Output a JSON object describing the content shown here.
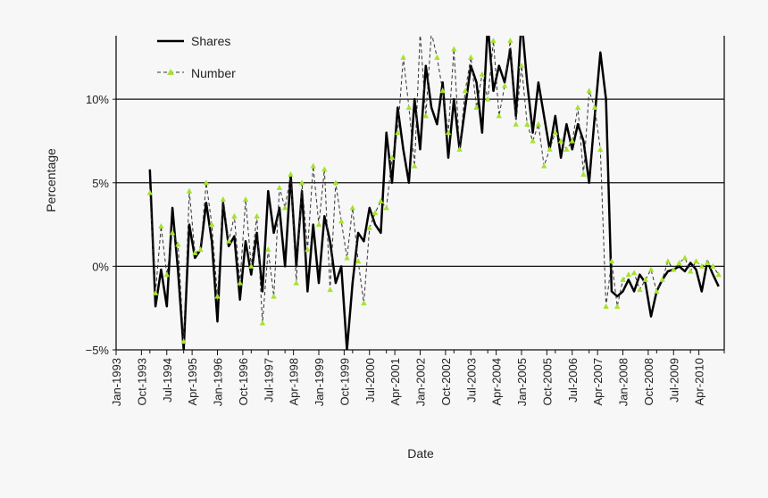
{
  "chart_data": {
    "type": "line",
    "title": "",
    "xlabel": "Date",
    "ylabel": "Percentage",
    "ylim": [
      -5,
      13.8
    ],
    "y_ticks": [
      {
        "value": -5,
        "label": "−5%"
      },
      {
        "value": 0,
        "label": "0%"
      },
      {
        "value": 5,
        "label": "5%"
      },
      {
        "value": 10,
        "label": "10%"
      }
    ],
    "x_range": [
      "1993-01",
      "2011-01"
    ],
    "x_ticks": [
      "Jan-1993",
      "Oct-1993",
      "Jul-1994",
      "Apr-1995",
      "Jan-1996",
      "Oct-1996",
      "Jul-1997",
      "Apr-1998",
      "Jan-1999",
      "Oct-1999",
      "Jul-2000",
      "Apr-2001",
      "Jan-2002",
      "Oct-2002",
      "Jul-2003",
      "Apr-2004",
      "Jan-2005",
      "Oct-2005",
      "Jul-2006",
      "Apr-2007",
      "Jan-2008",
      "Oct-2008",
      "Jul-2009",
      "Apr-2010"
    ],
    "x_tick_dates": [
      "1993-01",
      "1993-10",
      "1994-07",
      "1995-04",
      "1996-01",
      "1996-10",
      "1997-07",
      "1998-04",
      "1999-01",
      "1999-10",
      "2000-07",
      "2001-04",
      "2002-01",
      "2002-10",
      "2003-07",
      "2004-04",
      "2005-01",
      "2005-10",
      "2006-07",
      "2007-04",
      "2008-01",
      "2008-10",
      "2009-07",
      "2010-04"
    ],
    "gridlines_y": [
      10,
      5,
      0,
      -5
    ],
    "legend_placement": "top-left",
    "series": [
      {
        "name": "Shares",
        "color": "#000000",
        "style": "solid",
        "x": [
          "1994-01",
          "1994-03",
          "1994-05",
          "1994-07",
          "1994-09",
          "1994-11",
          "1995-01",
          "1995-03",
          "1995-05",
          "1995-07",
          "1995-09",
          "1995-11",
          "1996-01",
          "1996-03",
          "1996-05",
          "1996-07",
          "1996-09",
          "1996-11",
          "1997-01",
          "1997-03",
          "1997-05",
          "1997-07",
          "1997-09",
          "1997-11",
          "1998-01",
          "1998-03",
          "1998-05",
          "1998-07",
          "1998-09",
          "1998-11",
          "1999-01",
          "1999-03",
          "1999-05",
          "1999-07",
          "1999-09",
          "1999-11",
          "2000-01",
          "2000-03",
          "2000-05",
          "2000-07",
          "2000-09",
          "2000-11",
          "2001-01",
          "2001-03",
          "2001-05",
          "2001-07",
          "2001-09",
          "2001-11",
          "2002-01",
          "2002-03",
          "2002-05",
          "2002-07",
          "2002-09",
          "2002-11",
          "2003-01",
          "2003-03",
          "2003-05",
          "2003-07",
          "2003-09",
          "2003-11",
          "2004-01",
          "2004-03",
          "2004-05",
          "2004-07",
          "2004-09",
          "2004-11",
          "2005-01",
          "2005-03",
          "2005-05",
          "2005-07",
          "2005-09",
          "2005-11",
          "2006-01",
          "2006-03",
          "2006-05",
          "2006-07",
          "2006-09",
          "2006-11",
          "2007-01",
          "2007-03",
          "2007-05",
          "2007-07",
          "2007-09",
          "2007-11",
          "2008-01",
          "2008-03",
          "2008-05",
          "2008-07",
          "2008-09",
          "2008-11",
          "2009-01",
          "2009-03",
          "2009-05",
          "2009-07",
          "2009-09",
          "2009-11",
          "2010-01",
          "2010-03",
          "2010-05",
          "2010-07",
          "2010-09",
          "2010-11"
        ],
        "y": [
          5.8,
          -2.4,
          -0.2,
          -2.4,
          3.5,
          -0.3,
          -5.0,
          2.5,
          0.5,
          1.0,
          3.8,
          1.5,
          -3.3,
          3.8,
          1.2,
          1.8,
          -2.0,
          1.5,
          -0.5,
          2.0,
          -1.5,
          4.5,
          2.0,
          3.5,
          0.0,
          5.5,
          0.0,
          4.5,
          -1.5,
          2.5,
          -1.0,
          3.0,
          1.5,
          -1.0,
          0.0,
          -5.0,
          -1.0,
          2.0,
          1.5,
          3.5,
          2.5,
          2.0,
          8.0,
          5.0,
          9.5,
          7.0,
          5.0,
          10.0,
          7.0,
          12.0,
          9.5,
          8.5,
          11.0,
          6.5,
          10.0,
          7.0,
          9.5,
          12.0,
          11.0,
          8.0,
          14.5,
          10.5,
          12.0,
          11.0,
          13.0,
          9.0,
          14.8,
          11.0,
          8.0,
          11.0,
          9.0,
          7.0,
          9.0,
          6.5,
          8.5,
          7.0,
          8.5,
          7.5,
          5.0,
          9.0,
          12.8,
          10.0,
          -1.5,
          -1.8,
          -1.5,
          -0.8,
          -1.5,
          -0.5,
          -1.0,
          -3.0,
          -1.5,
          -0.8,
          -0.3,
          -0.2,
          0.0,
          -0.3,
          0.2,
          -0.2,
          -1.5,
          0.3,
          -0.5,
          -1.2
        ]
      },
      {
        "name": "Number",
        "color": "#333333",
        "marker_color": "#a6e22e",
        "style": "dashed",
        "x": [
          "1994-01",
          "1994-03",
          "1994-05",
          "1994-07",
          "1994-09",
          "1994-11",
          "1995-01",
          "1995-03",
          "1995-05",
          "1995-07",
          "1995-09",
          "1995-11",
          "1996-01",
          "1996-03",
          "1996-05",
          "1996-07",
          "1996-09",
          "1996-11",
          "1997-01",
          "1997-03",
          "1997-05",
          "1997-07",
          "1997-09",
          "1997-11",
          "1998-01",
          "1998-03",
          "1998-05",
          "1998-07",
          "1998-09",
          "1998-11",
          "1999-01",
          "1999-03",
          "1999-05",
          "1999-07",
          "1999-09",
          "1999-11",
          "2000-01",
          "2000-03",
          "2000-05",
          "2000-07",
          "2000-09",
          "2000-11",
          "2001-01",
          "2001-03",
          "2001-05",
          "2001-07",
          "2001-09",
          "2001-11",
          "2002-01",
          "2002-03",
          "2002-05",
          "2002-07",
          "2002-09",
          "2002-11",
          "2003-01",
          "2003-03",
          "2003-05",
          "2003-07",
          "2003-09",
          "2003-11",
          "2004-01",
          "2004-03",
          "2004-05",
          "2004-07",
          "2004-09",
          "2004-11",
          "2005-01",
          "2005-03",
          "2005-05",
          "2005-07",
          "2005-09",
          "2005-11",
          "2006-01",
          "2006-03",
          "2006-05",
          "2006-07",
          "2006-09",
          "2006-11",
          "2007-01",
          "2007-03",
          "2007-05",
          "2007-07",
          "2007-09",
          "2007-11",
          "2008-01",
          "2008-03",
          "2008-05",
          "2008-07",
          "2008-09",
          "2008-11",
          "2009-01",
          "2009-03",
          "2009-05",
          "2009-07",
          "2009-09",
          "2009-11",
          "2010-01",
          "2010-03",
          "2010-05",
          "2010-07",
          "2010-09",
          "2010-11"
        ],
        "y": [
          4.4,
          -1.6,
          2.4,
          -0.5,
          2.0,
          1.3,
          -4.5,
          4.5,
          0.8,
          1.0,
          5.0,
          2.5,
          -1.8,
          4.0,
          1.5,
          3.0,
          -1.0,
          4.0,
          0.0,
          3.0,
          -3.4,
          1.0,
          -1.8,
          4.7,
          3.5,
          5.5,
          -1.0,
          5.0,
          1.0,
          6.0,
          2.5,
          5.8,
          -1.4,
          5.0,
          2.7,
          0.5,
          3.5,
          0.3,
          -2.2,
          2.3,
          3.2,
          3.9,
          3.5,
          6.5,
          8.0,
          12.5,
          9.5,
          6.0,
          14.0,
          9.0,
          14.0,
          12.5,
          10.5,
          8.0,
          13.0,
          7.0,
          10.5,
          12.5,
          9.5,
          11.5,
          10.0,
          13.5,
          9.0,
          10.8,
          13.5,
          8.5,
          12.0,
          8.5,
          7.5,
          8.5,
          6.0,
          7.0,
          8.0,
          7.5,
          7.0,
          7.5,
          9.5,
          5.5,
          10.5,
          9.5,
          7.0,
          -2.4,
          0.3,
          -2.4,
          -0.8,
          -0.5,
          -0.4,
          -1.4,
          -0.8,
          -0.2,
          -1.5,
          -0.8,
          0.3,
          -0.2,
          0.2,
          0.5,
          -0.3,
          0.3,
          0.0,
          0.2,
          0.0,
          -0.5
        ]
      }
    ]
  }
}
